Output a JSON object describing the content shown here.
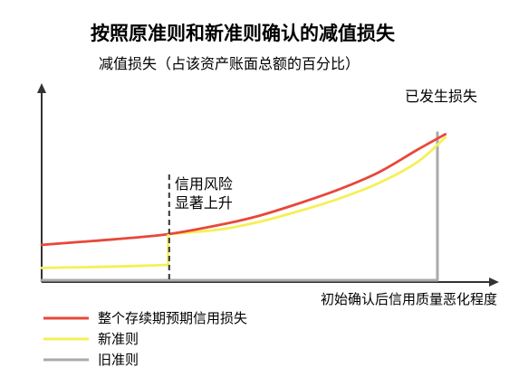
{
  "chart_data": {
    "type": "line",
    "title": "按照原准则和新准则确认的减值损失",
    "xlabel": "初始确认后信用质量恶化程度",
    "ylabel": "减值损失（占该资产账面总额的百分比）",
    "xlim": [
      0,
      100
    ],
    "ylim": [
      0,
      100
    ],
    "grid": false,
    "legend_position": "bottom-left",
    "annotations": [
      {
        "label": "已发生损失",
        "x": 100
      },
      {
        "label_lines": [
          "信用风险",
          "显著上升"
        ],
        "x": 32
      }
    ],
    "series": [
      {
        "name": "整个存续期预期信用损失",
        "color": "#e8473a",
        "x": [
          0,
          10,
          20,
          32,
          45,
          55,
          65,
          75,
          85,
          95,
          102
        ],
        "y": [
          23,
          25,
          27,
          30,
          36,
          42,
          50,
          59,
          70,
          85,
          95
        ]
      },
      {
        "name": "新准则",
        "color": "#f5f056",
        "segments": [
          {
            "x": [
              0,
              10,
              20,
              32
            ],
            "y": [
              8,
              8.5,
              9,
              10
            ]
          },
          {
            "x": [
              32,
              45,
              55,
              65,
              75,
              85,
              95,
              102
            ],
            "y": [
              30,
              33,
              38,
              45,
              53,
              63,
              77,
              93
            ]
          }
        ]
      },
      {
        "name": "旧准则",
        "color": "#aaaaaa",
        "segments": [
          {
            "x": [
              0,
              100
            ],
            "y": [
              0,
              0
            ]
          },
          {
            "x": [
              100,
              100
            ],
            "y": [
              0,
              96
            ]
          }
        ]
      }
    ]
  }
}
